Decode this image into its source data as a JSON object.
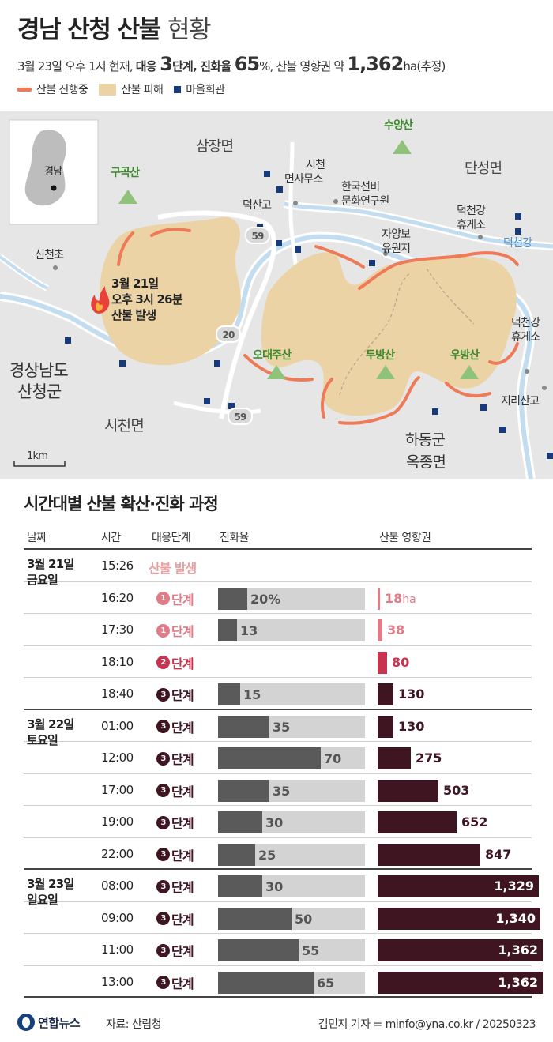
{
  "header": {
    "title_bold": "경남 산청 산불",
    "title_light": "현황",
    "sub_a": "3월 23일 오후 1시 현재, ",
    "sub_level_label": "대응 ",
    "sub_level_value": "3",
    "sub_level_unit": "단계, ",
    "sub_cont_label": "진화율 ",
    "sub_cont_value": "65",
    "sub_cont_unit": "%, ",
    "sub_area_label": "산불 영향권 약 ",
    "sub_area_value": "1,362",
    "sub_area_unit": "ha(추정)",
    "legend": [
      {
        "label": "산불 진행중",
        "color": "#ef7a57"
      },
      {
        "label": "산불 피해",
        "color": "#ecd3a6"
      },
      {
        "label": "마을회관",
        "color": "#163a7a"
      }
    ]
  },
  "map": {
    "inset_label": "경남",
    "region_labels": {
      "samjang": "삼장면",
      "danseong": "단성면",
      "province_l1": "경상남도",
      "province_l2": "산청군",
      "sicheon": "시천면",
      "hadong_l1": "하동군",
      "hadong_l2": "옥종면"
    },
    "mountains": [
      "구곡산",
      "수양산",
      "오대주산",
      "두방산",
      "우방산"
    ],
    "places": {
      "sinchencho": "신천초",
      "sicheon_office_l1": "시천",
      "sicheon_office_l2": "면사무소",
      "institute_l1": "한국선비",
      "institute_l2": "문화연구원",
      "deoksan": "덕산고",
      "jayangbo_l1": "자양보",
      "jayangbo_l2": "유원지",
      "rest1_l1": "덕천강",
      "rest1_l2": "휴게소",
      "river": "덕천강",
      "rest2_l1": "덕천강",
      "rest2_l2": "휴게소",
      "jirisan": "지리산고"
    },
    "roads": [
      "59",
      "20",
      "59"
    ],
    "ignition_l1": "3월 21일",
    "ignition_l2": "오후 3시 26분",
    "ignition_l3": "산불 발생",
    "scale": "1km"
  },
  "section_title": "시간대별 산불 확산·진화 과정",
  "table": {
    "headers": {
      "date": "날짜",
      "time": "시간",
      "stage": "대응단계",
      "containment": "진화율",
      "area": "산불 영향권"
    },
    "unit_stage": "단계",
    "rows": [
      {
        "date_l1": "3월 21일",
        "date_l2": "금요일",
        "time": "15:26",
        "stage": "",
        "stage_text": "산불 발생",
        "containment": null,
        "cont_label": "",
        "area": null,
        "area_label": "",
        "area_unit": ""
      },
      {
        "date_l1": "",
        "date_l2": "",
        "time": "16:20",
        "stage": "1",
        "containment": 20,
        "cont_label": "20%",
        "area": 18,
        "area_label": "18",
        "area_unit": "ha"
      },
      {
        "date_l1": "",
        "date_l2": "",
        "time": "17:30",
        "stage": "1",
        "containment": 13,
        "cont_label": "13",
        "area": 38,
        "area_label": "38",
        "area_unit": ""
      },
      {
        "date_l1": "",
        "date_l2": "",
        "time": "18:10",
        "stage": "2",
        "containment": null,
        "cont_label": "",
        "area": 80,
        "area_label": "80",
        "area_unit": ""
      },
      {
        "date_l1": "",
        "date_l2": "",
        "time": "18:40",
        "stage": "3",
        "containment": 15,
        "cont_label": "15",
        "area": 130,
        "area_label": "130",
        "area_unit": ""
      },
      {
        "date_l1": "3월 22일",
        "date_l2": "토요일",
        "time": "01:00",
        "stage": "3",
        "containment": 35,
        "cont_label": "35",
        "area": 130,
        "area_label": "130",
        "area_unit": ""
      },
      {
        "date_l1": "",
        "date_l2": "",
        "time": "12:00",
        "stage": "3",
        "containment": 70,
        "cont_label": "70",
        "area": 275,
        "area_label": "275",
        "area_unit": ""
      },
      {
        "date_l1": "",
        "date_l2": "",
        "time": "17:00",
        "stage": "3",
        "containment": 35,
        "cont_label": "35",
        "area": 503,
        "area_label": "503",
        "area_unit": ""
      },
      {
        "date_l1": "",
        "date_l2": "",
        "time": "19:00",
        "stage": "3",
        "containment": 30,
        "cont_label": "30",
        "area": 652,
        "area_label": "652",
        "area_unit": ""
      },
      {
        "date_l1": "",
        "date_l2": "",
        "time": "22:00",
        "stage": "3",
        "containment": 25,
        "cont_label": "25",
        "area": 847,
        "area_label": "847",
        "area_unit": ""
      },
      {
        "date_l1": "3월 23일",
        "date_l2": "일요일",
        "time": "08:00",
        "stage": "3",
        "containment": 30,
        "cont_label": "30",
        "area": 1329,
        "area_label": "1,329",
        "area_unit": ""
      },
      {
        "date_l1": "",
        "date_l2": "",
        "time": "09:00",
        "stage": "3",
        "containment": 50,
        "cont_label": "50",
        "area": 1340,
        "area_label": "1,340",
        "area_unit": ""
      },
      {
        "date_l1": "",
        "date_l2": "",
        "time": "11:00",
        "stage": "3",
        "containment": 55,
        "cont_label": "55",
        "area": 1362,
        "area_label": "1,362",
        "area_unit": ""
      },
      {
        "date_l1": "",
        "date_l2": "",
        "time": "13:00",
        "stage": "3",
        "containment": 65,
        "cont_label": "65",
        "area": 1362,
        "area_label": "1,362",
        "area_unit": ""
      }
    ]
  },
  "chart_data": {
    "type": "table",
    "title": "시간대별 산불 확산·진화 과정",
    "columns": [
      "날짜",
      "시간",
      "대응단계",
      "진화율",
      "산불 영향권"
    ],
    "containment_scale_max": 100,
    "area_scale_max": 1400,
    "stage_colors": {
      "1": "#e07c88",
      "2": "#c8334f",
      "3": "#3e1520"
    },
    "series": [
      {
        "name": "진화율",
        "unit": "%",
        "values": [
          null,
          20,
          13,
          null,
          15,
          35,
          70,
          35,
          30,
          25,
          30,
          50,
          55,
          65
        ]
      },
      {
        "name": "산불 영향권",
        "unit": "ha",
        "values": [
          null,
          18,
          38,
          80,
          130,
          130,
          275,
          503,
          652,
          847,
          1329,
          1340,
          1362,
          1362
        ]
      }
    ],
    "categories": [
      "3/21 15:26",
      "3/21 16:20",
      "3/21 17:30",
      "3/21 18:10",
      "3/21 18:40",
      "3/22 01:00",
      "3/22 12:00",
      "3/22 17:00",
      "3/22 19:00",
      "3/22 22:00",
      "3/23 08:00",
      "3/23 09:00",
      "3/23 11:00",
      "3/23 13:00"
    ]
  },
  "footer": {
    "logo": "연합뉴스",
    "source": "자료: 산림청",
    "credit": "김민지 기자 = minfo@yna.co.kr / 20250323"
  }
}
